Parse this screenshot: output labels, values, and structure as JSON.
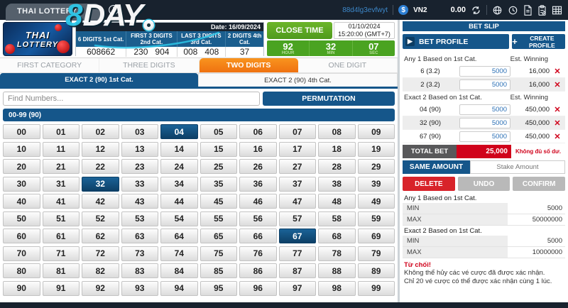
{
  "topbar": {
    "game_tab": "THAI LOTTERY",
    "session_id": "88d4lg3evfwyt",
    "currency_code": "VN2",
    "coin_symbol": "$",
    "balance": "0.00",
    "brand_digit": "8",
    "brand_word": "DAY"
  },
  "header": {
    "logo_line1": "THAI",
    "logo_line2": "LOTTERY",
    "date_label": "Date: 16/09/2024",
    "results": {
      "columns": [
        "6 DIGITS 1st Cat.",
        "FIRST 3 DIGITS 2nd Cat.",
        "LAST 3 DIGITS 3rd Cat.",
        "2 DIGITS 4th Cat."
      ],
      "values": [
        "608662",
        "230   904",
        "008   408",
        "37"
      ]
    },
    "close_time": {
      "label": "CLOSE TIME",
      "date": "01/10/2024",
      "time": "15:20:00 (GMT+7)",
      "countdown": [
        {
          "value": "92",
          "unit": "HOUR"
        },
        {
          "value": "32",
          "unit": "MIN"
        },
        {
          "value": "07",
          "unit": "SEC"
        }
      ]
    }
  },
  "category_tabs": [
    {
      "label": "FIRST CATEGORY",
      "active": false
    },
    {
      "label": "THREE DIGITS",
      "active": false
    },
    {
      "label": "TWO DIGITS",
      "active": true
    },
    {
      "label": "ONE DIGIT",
      "active": false
    }
  ],
  "sub_tabs": [
    {
      "label": "EXACT 2 (90) 1st Cat.",
      "active": true
    },
    {
      "label": "EXACT 2 (90) 4th Cat.",
      "active": false
    }
  ],
  "search": {
    "placeholder": "Find Numbers...",
    "permutation_label": "PERMUTATION"
  },
  "range_header": "00-99 (90)",
  "grid": {
    "start": 0,
    "end": 99,
    "selected": [
      "04",
      "32",
      "67"
    ]
  },
  "bet_slip": {
    "title": "BET SLIP",
    "profile_button": "BET PROFILE",
    "create_profile_button": "CREATE PROFILE",
    "sections": [
      {
        "title": "Any 1 Based on 1st Cat.",
        "est_label": "Est. Winning",
        "rows": [
          {
            "label": "6 (3.2)",
            "stake": "5000",
            "winning": "16,000"
          },
          {
            "label": "2 (3.2)",
            "stake": "5000",
            "winning": "16,000"
          }
        ]
      },
      {
        "title": "Exact 2 Based on 1st Cat.",
        "est_label": "Est. Winning",
        "rows": [
          {
            "label": "04 (90)",
            "stake": "5000",
            "winning": "450,000"
          },
          {
            "label": "32 (90)",
            "stake": "5000",
            "winning": "450,000"
          },
          {
            "label": "67 (90)",
            "stake": "5000",
            "winning": "450,000"
          }
        ]
      }
    ],
    "total": {
      "label": "TOTAL BET",
      "value": "25,000",
      "note": "Không đủ số dư."
    },
    "same_amount_label": "SAME AMOUNT",
    "stake_placeholder": "Stake Amount",
    "actions": [
      {
        "label": "DELETE",
        "style": "delete"
      },
      {
        "label": "UNDO",
        "style": "gray"
      },
      {
        "label": "CONFIRM",
        "style": "gray"
      }
    ],
    "limits": [
      {
        "title": "Any 1 Based on 1st Cat.",
        "rows": [
          [
            "MIN",
            "5000"
          ],
          [
            "MAX",
            "50000000"
          ]
        ]
      },
      {
        "title": "Exact 2 Based on 1st Cat.",
        "rows": [
          [
            "MIN",
            "5000"
          ],
          [
            "MAX",
            "10000000"
          ]
        ]
      }
    ],
    "warning": {
      "title": "Từ chối!",
      "line1": "Không thể hủy các vé cược đã được xác nhận.",
      "line2": "Chỉ 20 vé cược có thể được xác nhận cùng 1 lúc."
    }
  },
  "colors": {
    "accent_blue": "#15568a",
    "active_orange": "#f5821f",
    "green": "#4aa321",
    "red": "#d0021b",
    "topbar": "#18222e"
  }
}
